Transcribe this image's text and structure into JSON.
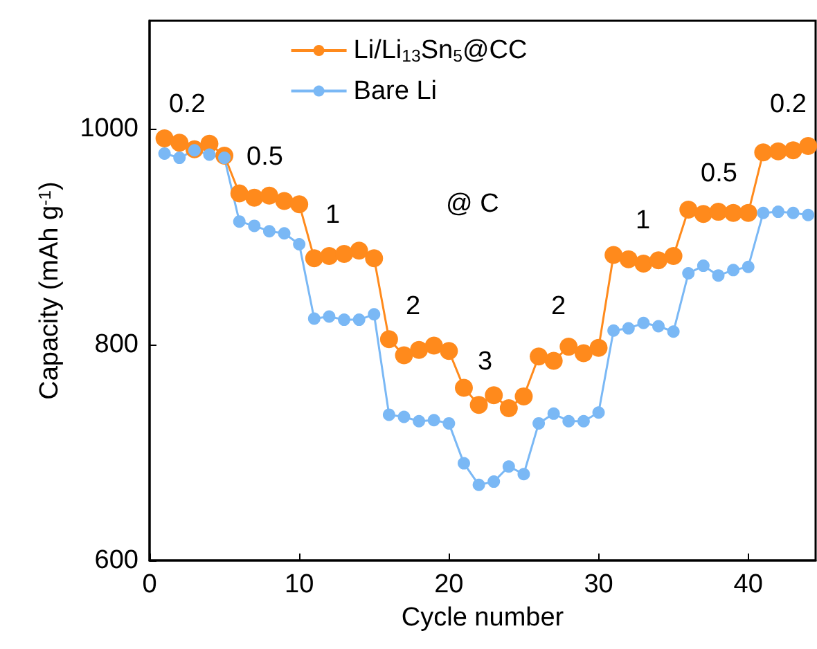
{
  "chart_data": {
    "type": "line",
    "xlabel": "Cycle number",
    "ylabel": "Capacity (mAh g$^{-1}$)",
    "xlim": [
      0,
      44.5
    ],
    "xticks": [
      0,
      10,
      20,
      30,
      40
    ],
    "ylim": [
      600,
      1100
    ],
    "yticks": [
      600,
      800,
      1000
    ],
    "grid": false,
    "legend": "top",
    "marker": "circle",
    "line_style": "solid",
    "x": [
      1,
      2,
      3,
      4,
      5,
      6,
      7,
      8,
      9,
      10,
      11,
      12,
      13,
      14,
      15,
      16,
      17,
      18,
      19,
      20,
      21,
      22,
      23,
      24,
      25,
      26,
      27,
      28,
      29,
      30,
      31,
      32,
      33,
      34,
      35,
      36,
      37,
      38,
      39,
      40,
      41,
      42,
      43,
      44
    ],
    "series": [
      {
        "name": "Li/Li$_{13}$Sn$_{5}$@CC",
        "color": "#ff8a1c",
        "values": [
          991,
          987,
          981,
          986,
          975,
          940,
          936,
          938,
          933,
          930,
          880,
          882,
          884,
          887,
          880,
          805,
          790,
          795,
          799,
          794,
          760,
          744,
          753,
          741,
          752,
          789,
          785,
          798,
          792,
          797,
          883,
          879,
          875,
          878,
          882,
          925,
          921,
          923,
          922,
          922,
          978,
          979,
          980,
          984
        ]
      },
      {
        "name": "Bare Li",
        "color": "#7ab8f5",
        "values": [
          977,
          973,
          980,
          976,
          973,
          914,
          910,
          905,
          903,
          893,
          824,
          826,
          823,
          823,
          828,
          735,
          733,
          729,
          730,
          727,
          690,
          670,
          673,
          687,
          680,
          727,
          736,
          729,
          729,
          737,
          813,
          815,
          820,
          817,
          812,
          866,
          873,
          864,
          869,
          872,
          922,
          923,
          922,
          920
        ]
      }
    ],
    "annotations": [
      "0.2",
      "0.5",
      "1",
      "2",
      "3",
      "2",
      "1",
      "0.5",
      "0.2",
      "@ C"
    ]
  }
}
